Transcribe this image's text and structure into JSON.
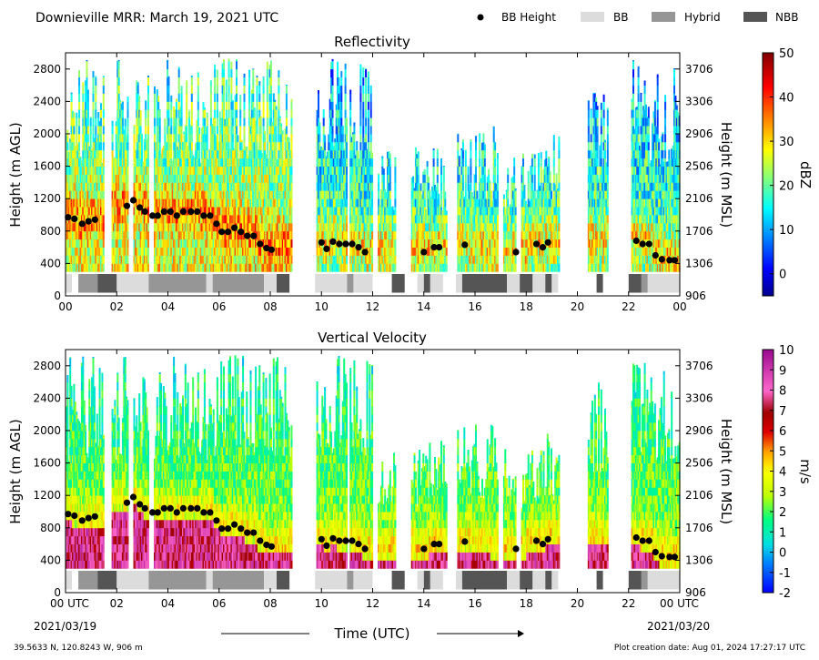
{
  "header": {
    "title": "Downieville MRR:  March 19, 2021 UTC",
    "legend": [
      {
        "label": "BB Height",
        "kind": "marker",
        "color": "#000000"
      },
      {
        "label": "BB",
        "kind": "swatch",
        "color": "#DCDCDC"
      },
      {
        "label": "Hybrid",
        "kind": "swatch",
        "color": "#969696"
      },
      {
        "label": "NBB",
        "kind": "swatch",
        "color": "#555555"
      }
    ]
  },
  "footer": {
    "location": "39.5633 N, 120.8243 W, 906 m",
    "creation_date": "Plot creation date: Aug 01, 2024 17:27:17 UTC",
    "xaxis_title": "Time (UTC)",
    "start_label": "00 UTC",
    "start_date": "2021/03/19",
    "end_label": "00 UTC",
    "end_date": "2021/03/20"
  },
  "colors": {
    "bb": "#DCDCDC",
    "hybrid": "#969696",
    "nbb": "#555555",
    "bb_height": "#000000"
  },
  "chart_data": [
    {
      "type": "heatmap",
      "title": "Reflectivity",
      "ylabel": "Height (m AGL)",
      "ylabel_right": "Height (m MSL)",
      "colorbar_label": "dBZ",
      "colorbar_ticks": [
        "50",
        "40",
        "30",
        "20",
        "10",
        "0"
      ],
      "colorbar_range": [
        -5,
        50
      ],
      "colormap": "jet",
      "xlim": [
        0,
        24
      ],
      "ylim": [
        0,
        3000
      ],
      "x_ticks": [
        "00",
        "02",
        "04",
        "06",
        "08",
        "10",
        "12",
        "14",
        "16",
        "18",
        "20",
        "22",
        "00"
      ],
      "y_ticks": [
        "0",
        "400",
        "800",
        "1200",
        "1600",
        "2000",
        "2400",
        "2800"
      ],
      "y_ticks_right": [
        "906",
        "1306",
        "1706",
        "2106",
        "2506",
        "2906",
        "3306",
        "3706"
      ],
      "y_ticks_right_values": [
        0,
        400,
        800,
        1200,
        1600,
        2000,
        2400,
        2800
      ]
    },
    {
      "type": "heatmap",
      "title": "Vertical Velocity",
      "ylabel": "Height (m AGL)",
      "ylabel_right": "Height (m MSL)",
      "colorbar_label": "m/s",
      "colorbar_ticks": [
        "10",
        "9",
        "8",
        "7",
        "6",
        "5",
        "4",
        "3",
        "2",
        "1",
        "0",
        "-1",
        "-2"
      ],
      "colorbar_range": [
        -2,
        10
      ],
      "colormap": "velocity",
      "xlim": [
        0,
        24
      ],
      "ylim": [
        0,
        3000
      ],
      "x_ticks": [
        "00 UTC",
        "02",
        "04",
        "06",
        "08",
        "10",
        "12",
        "14",
        "16",
        "18",
        "20",
        "22",
        "00 UTC"
      ],
      "y_ticks": [
        "0",
        "400",
        "800",
        "1200",
        "1600",
        "2000",
        "2400",
        "2800"
      ],
      "y_ticks_right": [
        "906",
        "1306",
        "1706",
        "2106",
        "2506",
        "2906",
        "3306",
        "3706"
      ],
      "y_ticks_right_values": [
        0,
        400,
        800,
        1200,
        1600,
        2000,
        2400,
        2800
      ]
    }
  ],
  "precip": {
    "segments": [
      {
        "start": 0.0,
        "end": 8.8,
        "top": 2950
      },
      {
        "start": 9.8,
        "end": 12.0,
        "top": 2950
      },
      {
        "start": 12.2,
        "end": 12.9,
        "top": 1800
      },
      {
        "start": 13.5,
        "end": 14.9,
        "top": 1900
      },
      {
        "start": 15.3,
        "end": 16.8,
        "top": 2100
      },
      {
        "start": 16.8,
        "end": 18.8,
        "top": 1800
      },
      {
        "start": 18.8,
        "end": 19.3,
        "top": 2000
      },
      {
        "start": 20.4,
        "end": 21.2,
        "top": 2600
      },
      {
        "start": 22.1,
        "end": 24.0,
        "top": 2950
      }
    ],
    "gaps": [
      [
        1.5,
        1.8
      ],
      [
        2.4,
        2.6
      ],
      [
        3.2,
        3.4
      ],
      [
        9.3,
        9.8
      ],
      [
        11.0,
        11.1
      ],
      [
        13.0,
        13.5
      ],
      [
        14.9,
        15.3
      ],
      [
        16.9,
        17.1
      ],
      [
        17.6,
        17.8
      ],
      [
        19.3,
        20.4
      ],
      [
        21.2,
        22.1
      ]
    ]
  },
  "bb_height": {
    "times": [
      0.1,
      0.35,
      0.65,
      0.9,
      1.15,
      2.4,
      2.65,
      2.9,
      3.1,
      3.4,
      3.6,
      3.85,
      4.1,
      4.35,
      4.6,
      4.9,
      5.15,
      5.4,
      5.65,
      5.9,
      6.1,
      6.35,
      6.6,
      6.85,
      7.1,
      7.35,
      7.6,
      7.85,
      8.05,
      10.0,
      10.2,
      10.45,
      10.7,
      10.95,
      11.2,
      11.45,
      11.7,
      14.0,
      14.4,
      14.6,
      15.6,
      17.6,
      18.4,
      18.65,
      18.85,
      22.3,
      22.55,
      22.8,
      23.05,
      23.3,
      23.6,
      23.8
    ],
    "heights": [
      970,
      950,
      890,
      920,
      940,
      1110,
      1180,
      1090,
      1040,
      990,
      990,
      1040,
      1040,
      990,
      1040,
      1040,
      1040,
      990,
      990,
      890,
      790,
      790,
      840,
      790,
      740,
      740,
      640,
      590,
      570,
      660,
      580,
      670,
      640,
      640,
      640,
      600,
      540,
      540,
      600,
      600,
      630,
      540,
      640,
      600,
      660,
      680,
      640,
      640,
      500,
      450,
      440,
      440
    ]
  },
  "bb_classification": [
    {
      "start": 0.0,
      "end": 0.25,
      "class": "bb"
    },
    {
      "start": 0.5,
      "end": 1.25,
      "class": "hybrid"
    },
    {
      "start": 1.25,
      "end": 2.0,
      "class": "nbb"
    },
    {
      "start": 2.0,
      "end": 3.25,
      "class": "bb"
    },
    {
      "start": 3.25,
      "end": 5.5,
      "class": "hybrid"
    },
    {
      "start": 5.5,
      "end": 5.75,
      "class": "bb"
    },
    {
      "start": 5.75,
      "end": 7.75,
      "class": "hybrid"
    },
    {
      "start": 7.75,
      "end": 8.25,
      "class": "bb"
    },
    {
      "start": 8.25,
      "end": 8.75,
      "class": "nbb"
    },
    {
      "start": 9.75,
      "end": 11.0,
      "class": "bb"
    },
    {
      "start": 11.0,
      "end": 11.25,
      "class": "hybrid"
    },
    {
      "start": 11.25,
      "end": 12.0,
      "class": "bb"
    },
    {
      "start": 12.75,
      "end": 13.25,
      "class": "nbb"
    },
    {
      "start": 13.75,
      "end": 14.0,
      "class": "bb"
    },
    {
      "start": 14.0,
      "end": 14.25,
      "class": "nbb"
    },
    {
      "start": 14.25,
      "end": 14.75,
      "class": "bb"
    },
    {
      "start": 15.25,
      "end": 15.5,
      "class": "bb"
    },
    {
      "start": 15.5,
      "end": 17.25,
      "class": "nbb"
    },
    {
      "start": 17.25,
      "end": 17.75,
      "class": "bb"
    },
    {
      "start": 17.75,
      "end": 18.25,
      "class": "nbb"
    },
    {
      "start": 18.25,
      "end": 18.75,
      "class": "bb"
    },
    {
      "start": 18.75,
      "end": 19.0,
      "class": "nbb"
    },
    {
      "start": 19.0,
      "end": 19.25,
      "class": "bb"
    },
    {
      "start": 20.75,
      "end": 21.0,
      "class": "nbb"
    },
    {
      "start": 22.0,
      "end": 22.5,
      "class": "nbb"
    },
    {
      "start": 22.5,
      "end": 22.75,
      "class": "hybrid"
    },
    {
      "start": 22.75,
      "end": 24.0,
      "class": "bb"
    }
  ]
}
